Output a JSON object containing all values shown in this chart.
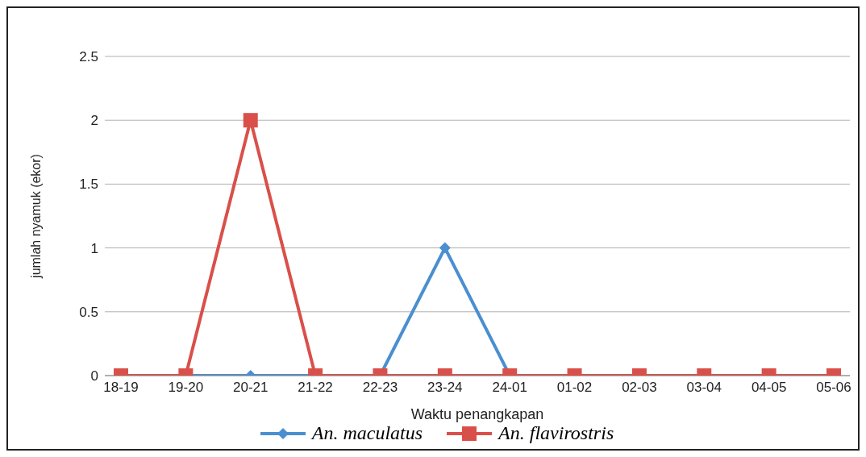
{
  "chart_data": {
    "type": "line",
    "xlabel": "Waktu penangkapan",
    "ylabel": "jumlah nyamuk (ekor)",
    "categories": [
      "18-19",
      "19-20",
      "20-21",
      "21-22",
      "22-23",
      "23-24",
      "24-01",
      "01-02",
      "02-03",
      "03-04",
      "04-05",
      "05-06"
    ],
    "series": [
      {
        "name": "An. maculatus",
        "color": "#4a8fd0",
        "marker": "diamond",
        "values": [
          null,
          0,
          0,
          0,
          0,
          1,
          0,
          null,
          null,
          null,
          null,
          null
        ]
      },
      {
        "name": "An. flavirostris",
        "color": "#d9504a",
        "marker": "square",
        "values": [
          0,
          0,
          2,
          0,
          0,
          0,
          0,
          0,
          0,
          0,
          0,
          0
        ]
      }
    ],
    "ylim": [
      0,
      2.5
    ],
    "yticks": [
      0,
      0.5,
      1,
      1.5,
      2,
      2.5
    ],
    "grid": "y",
    "legend": "bottom"
  }
}
